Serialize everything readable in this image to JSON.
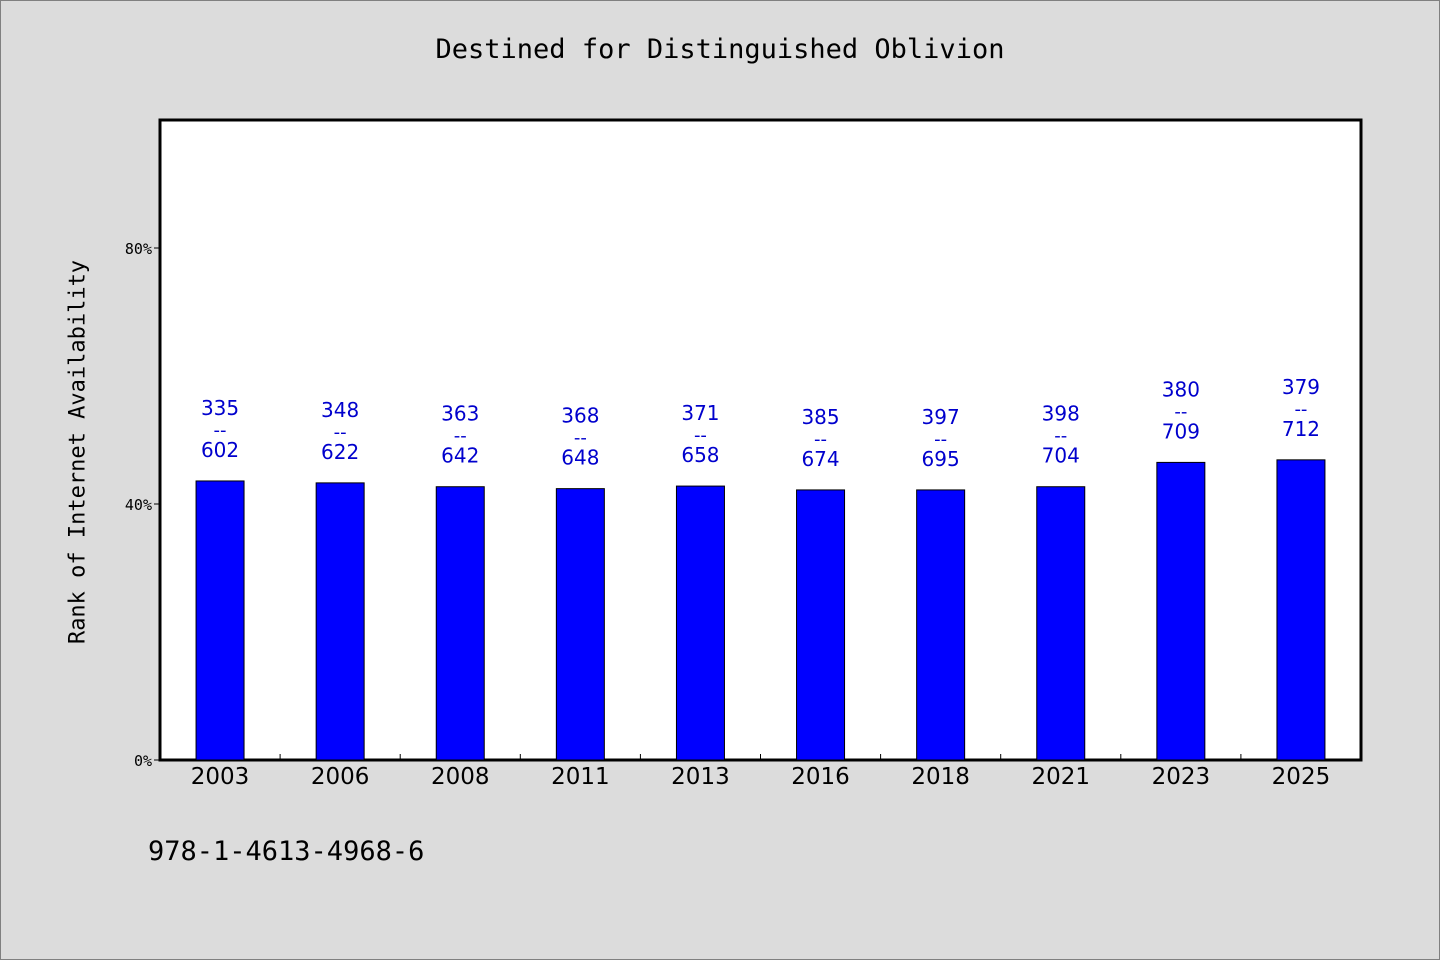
{
  "chart_data": {
    "type": "bar",
    "title": "Destined for Distinguished Oblivion",
    "xlabel": "",
    "ylabel": "Rank of Internet Availability",
    "categories": [
      "2003",
      "2006",
      "2008",
      "2011",
      "2013",
      "2016",
      "2018",
      "2021",
      "2023",
      "2025"
    ],
    "values": [
      43.6,
      43.3,
      42.7,
      42.4,
      42.8,
      42.2,
      42.2,
      42.7,
      46.5,
      46.9
    ],
    "label_top": [
      "335",
      "348",
      "363",
      "368",
      "371",
      "385",
      "397",
      "398",
      "380",
      "379"
    ],
    "label_sep": "--",
    "label_bottom": [
      "602",
      "622",
      "642",
      "648",
      "658",
      "674",
      "695",
      "704",
      "709",
      "712"
    ],
    "y_ticks": [
      0,
      40,
      80
    ],
    "y_tick_labels": [
      "0%",
      "40%",
      "80%"
    ],
    "ylim": [
      0,
      100
    ],
    "grid": false,
    "legend": "none",
    "bar_color": "#0000ff",
    "label_color": "#0000cd",
    "footnote": "978-1-4613-4968-6"
  }
}
